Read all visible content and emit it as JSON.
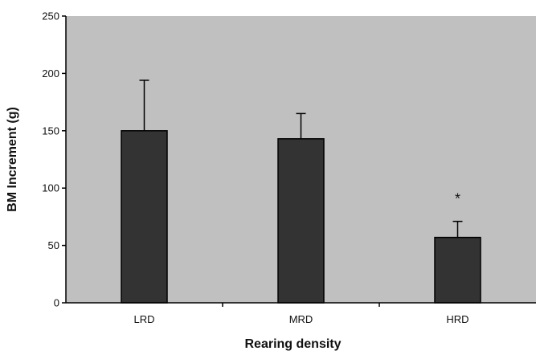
{
  "chart_data": {
    "type": "bar",
    "categories": [
      "LRD",
      "MRD",
      "HRD"
    ],
    "values": [
      150,
      143,
      57
    ],
    "error_upper": [
      194,
      165,
      71
    ],
    "annotations": [
      {
        "category": "HRD",
        "text": "*"
      }
    ],
    "xlabel": "Rearing density",
    "ylabel": "BM Increment (g)",
    "ylim": [
      0,
      250
    ],
    "yticks": [
      0,
      50,
      100,
      150,
      200,
      250
    ],
    "grid": false,
    "legend": "none",
    "colors": {
      "plot_background": "#c0c0c0",
      "bar_fill": "#333333",
      "bar_stroke": "#000000",
      "axis": "#000000"
    }
  }
}
